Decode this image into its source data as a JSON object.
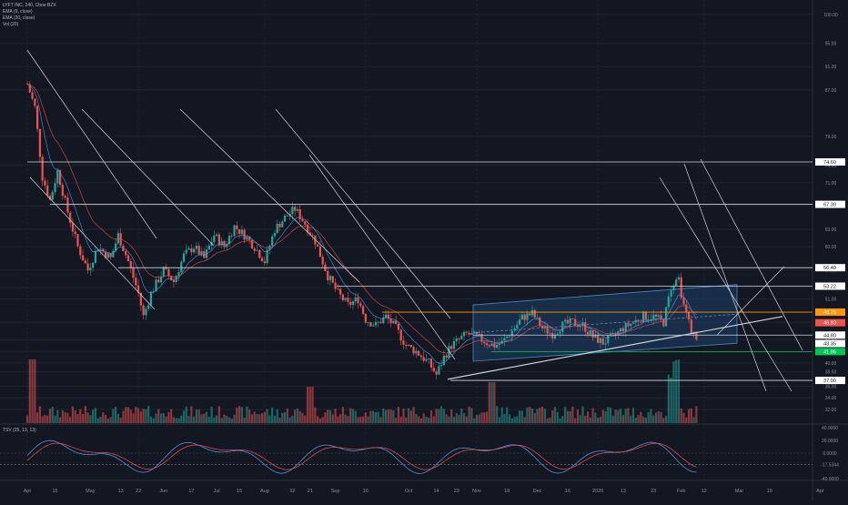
{
  "header": {
    "symbol": "LYFT INC, 240, Cboe BZX",
    "ind1": "EMA (9, close)",
    "ind2": "EMA (20, close)",
    "ind3": "Vol (20)",
    "osc": "TSV (25, 13, 13)"
  },
  "colors": {
    "bg": "#131722",
    "grid": "#1f2330",
    "up": "#26a69a",
    "down": "#ef5350",
    "ema_fast": "#5b9cf6",
    "ema_slow": "#ef5350",
    "channel_fill": "#1e4a78",
    "white_line": "#d1d4dc",
    "orange_level": "#ff9800",
    "green_level": "#00c853"
  },
  "chart_data": {
    "type": "candlestick",
    "x_ticks": [
      "Apr",
      "15",
      "May",
      "13",
      "22",
      "Jun",
      "17",
      "Jul",
      "15",
      "Aug",
      "12",
      "21",
      "Sep",
      "16",
      "Oct",
      "14",
      "23",
      "Nov",
      "18",
      "Dec",
      "16",
      "2020",
      "13",
      "23",
      "Feb",
      "12",
      "Mar",
      "16",
      "Apr"
    ],
    "y_ticks": [
      "100.00",
      "95.00",
      "91.00",
      "87.00",
      "79.00",
      "74.00",
      "71.00",
      "67.00",
      "63.00",
      "60.00",
      "56.00",
      "53.00",
      "51.00",
      "47.00",
      "44.00",
      "42.00",
      "40.00",
      "38.50",
      "36.00",
      "34.00",
      "32.00"
    ],
    "price_labels": [
      {
        "text": "74.60",
        "value": 74.6,
        "color": "#ffffff",
        "bg": "#ffffff"
      },
      {
        "text": "67.30",
        "value": 67.3,
        "color": "#ffffff",
        "bg": "#ffffff"
      },
      {
        "text": "56.40",
        "value": 56.4,
        "color": "#ffffff",
        "bg": "#ffffff"
      },
      {
        "text": "53.22",
        "value": 53.22,
        "color": "#ffffff",
        "bg": "#ffffff"
      },
      {
        "text": "48.75",
        "value": 48.75,
        "color": "#ff9800",
        "bg": "#ff9800"
      },
      {
        "text": "46.93",
        "value": 46.93,
        "color": "#ef5350",
        "bg": "#ef5350"
      },
      {
        "text": "44.80",
        "value": 44.8,
        "color": "#ffffff",
        "bg": "#ffffff"
      },
      {
        "text": "43.35",
        "value": 43.35,
        "color": "#ffffff",
        "bg": "#ffffff"
      },
      {
        "text": "41.96",
        "value": 41.96,
        "color": "#00c853",
        "bg": "#00c853"
      },
      {
        "text": "37.00",
        "value": 37.0,
        "color": "#ffffff",
        "bg": "#ffffff"
      }
    ],
    "levels": [
      74.6,
      67.3,
      56.4,
      53.22,
      48.75,
      44.8,
      41.96,
      37.0
    ],
    "price_path": [
      [
        0.0,
        88.0
      ],
      [
        1.5,
        84.0
      ],
      [
        3.0,
        72.0
      ],
      [
        4.5,
        68.0
      ],
      [
        6.0,
        73.0
      ],
      [
        8.0,
        66.0
      ],
      [
        10.0,
        60.0
      ],
      [
        12.0,
        56.0
      ],
      [
        14.0,
        60.0
      ],
      [
        16.5,
        58.0
      ],
      [
        18.0,
        62.0
      ],
      [
        20.0,
        57.5
      ],
      [
        22.0,
        52.0
      ],
      [
        23.0,
        48.0
      ],
      [
        24.5,
        52.0
      ],
      [
        27.0,
        56.0
      ],
      [
        29.0,
        54.0
      ],
      [
        31.0,
        58.5
      ],
      [
        33.0,
        60.0
      ],
      [
        35.0,
        58.0
      ],
      [
        37.0,
        62.0
      ],
      [
        39.0,
        60.0
      ],
      [
        41.0,
        63.5
      ],
      [
        43.0,
        62.0
      ],
      [
        45.0,
        60.0
      ],
      [
        47.0,
        57.5
      ],
      [
        49.0,
        63.0
      ],
      [
        51.0,
        65.0
      ],
      [
        53.0,
        66.5
      ],
      [
        55.0,
        64.0
      ],
      [
        57.0,
        61.0
      ],
      [
        59.5,
        55.0
      ],
      [
        61.5,
        52.0
      ],
      [
        63.5,
        50.0
      ],
      [
        65.5,
        51.0
      ],
      [
        67.0,
        47.5
      ],
      [
        69.0,
        46.5
      ],
      [
        71.0,
        48.0
      ],
      [
        73.0,
        46.0
      ],
      [
        75.0,
        43.0
      ],
      [
        77.0,
        42.0
      ],
      [
        79.5,
        40.0
      ],
      [
        81.0,
        38.0
      ],
      [
        82.5,
        41.0
      ],
      [
        84.0,
        43.0
      ],
      [
        85.5,
        44.0
      ],
      [
        87.0,
        45.0
      ],
      [
        89.0,
        44.5
      ],
      [
        91.0,
        43.5
      ],
      [
        92.5,
        43.0
      ],
      [
        94.0,
        43.5
      ],
      [
        96.0,
        45.5
      ],
      [
        98.0,
        47.8
      ],
      [
        100.0,
        48.5
      ],
      [
        102.0,
        46.0
      ],
      [
        104.0,
        45.0
      ],
      [
        106.0,
        46.5
      ],
      [
        108.0,
        47.0
      ],
      [
        110.0,
        46.5
      ],
      [
        112.0,
        44.5
      ],
      [
        114.0,
        43.5
      ],
      [
        116.0,
        44.5
      ],
      [
        118.0,
        46.0
      ],
      [
        120.0,
        47.0
      ],
      [
        122.0,
        48.0
      ],
      [
        124.0,
        48.0
      ],
      [
        126.0,
        47.0
      ],
      [
        127.5,
        53.0
      ],
      [
        129.0,
        54.0
      ],
      [
        130.0,
        50.0
      ],
      [
        131.5,
        45.5
      ],
      [
        132.5,
        44.5
      ]
    ],
    "osc_ticks": [
      "40.0000",
      "20.0000",
      "0.0000",
      "-17.5344",
      "-40.0000"
    ]
  }
}
